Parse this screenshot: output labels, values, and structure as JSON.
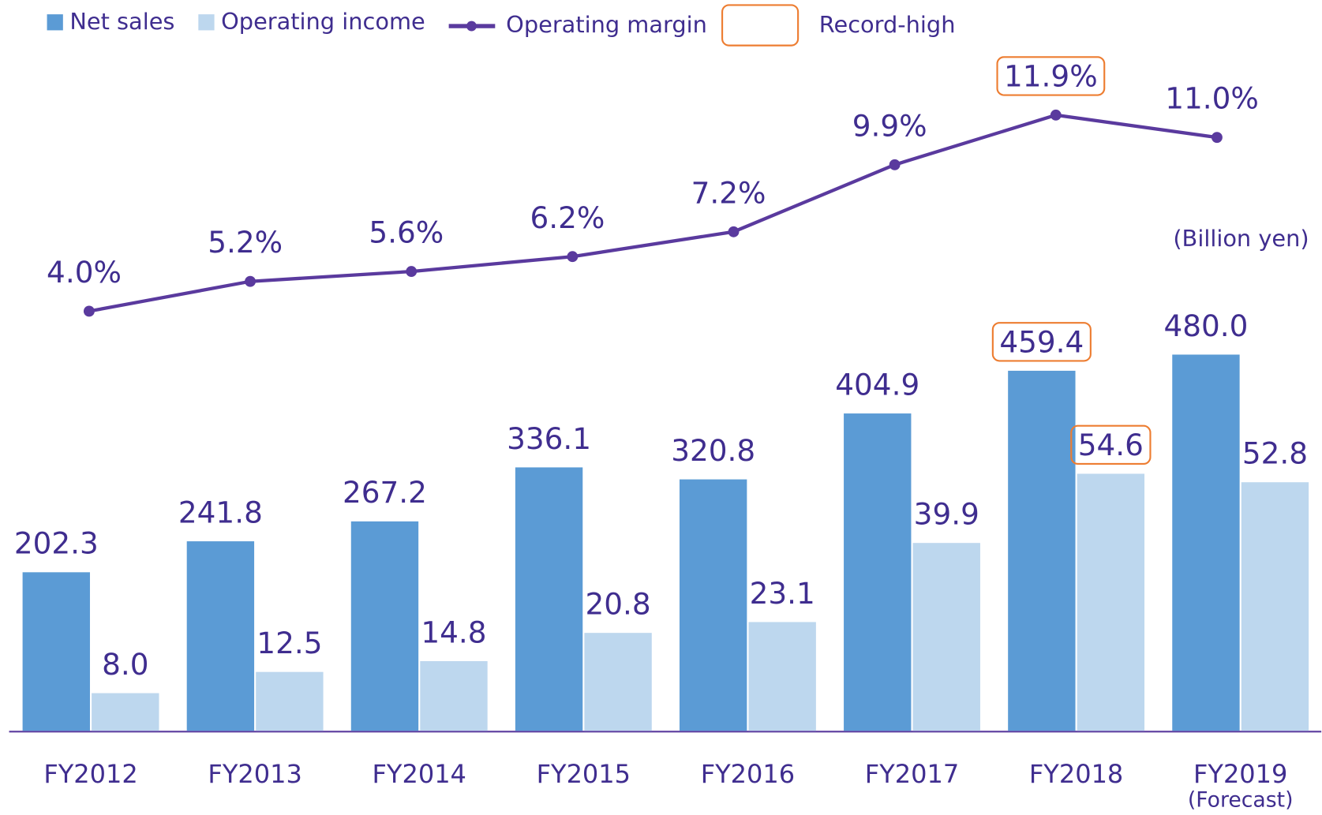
{
  "chart_data": {
    "type": "bar",
    "unit_label": "(Billion yen)",
    "categories": [
      "FY2012",
      "FY2013",
      "FY2014",
      "FY2015",
      "FY2016",
      "FY2017",
      "FY2018",
      "FY2019"
    ],
    "category_notes": [
      null,
      null,
      null,
      null,
      null,
      null,
      null,
      "(Forecast)"
    ],
    "highlight_label": "Record-high",
    "highlight": "FY2018",
    "highlight_color": "#ed7d31",
    "ylim": [
      0,
      868
    ],
    "y2lim": [
      0,
      144.5
    ],
    "y3lim": [
      -12.9,
      14.5
    ],
    "series": [
      {
        "name": "Net sales",
        "type": "bar",
        "color": "#5b9bd5",
        "values": [
          202.3,
          241.8,
          267.2,
          336.1,
          320.8,
          404.9,
          459.4,
          480.0
        ],
        "value_labels": [
          "202.3",
          "241.8",
          "267.2",
          "336.1",
          "320.8",
          "404.9",
          "459.4",
          "480.0"
        ]
      },
      {
        "name": "Operating income",
        "type": "bar",
        "axis": "y2",
        "color": "#bdd7ee",
        "values": [
          8.0,
          12.5,
          14.8,
          20.8,
          23.1,
          39.9,
          54.6,
          52.8
        ],
        "value_labels": [
          "8.0",
          "12.5",
          "14.8",
          "20.8",
          "23.1",
          "39.9",
          "54.6",
          "52.8"
        ]
      },
      {
        "name": "Operating margin",
        "type": "line",
        "axis": "y3",
        "color": "#5a3a9e",
        "values": [
          4.0,
          5.2,
          5.6,
          6.2,
          7.2,
          9.9,
          11.9,
          11.0
        ],
        "value_labels": [
          "4.0%",
          "5.2%",
          "5.6%",
          "6.2%",
          "7.2%",
          "9.9%",
          "11.9%",
          "11.0%"
        ]
      }
    ]
  }
}
